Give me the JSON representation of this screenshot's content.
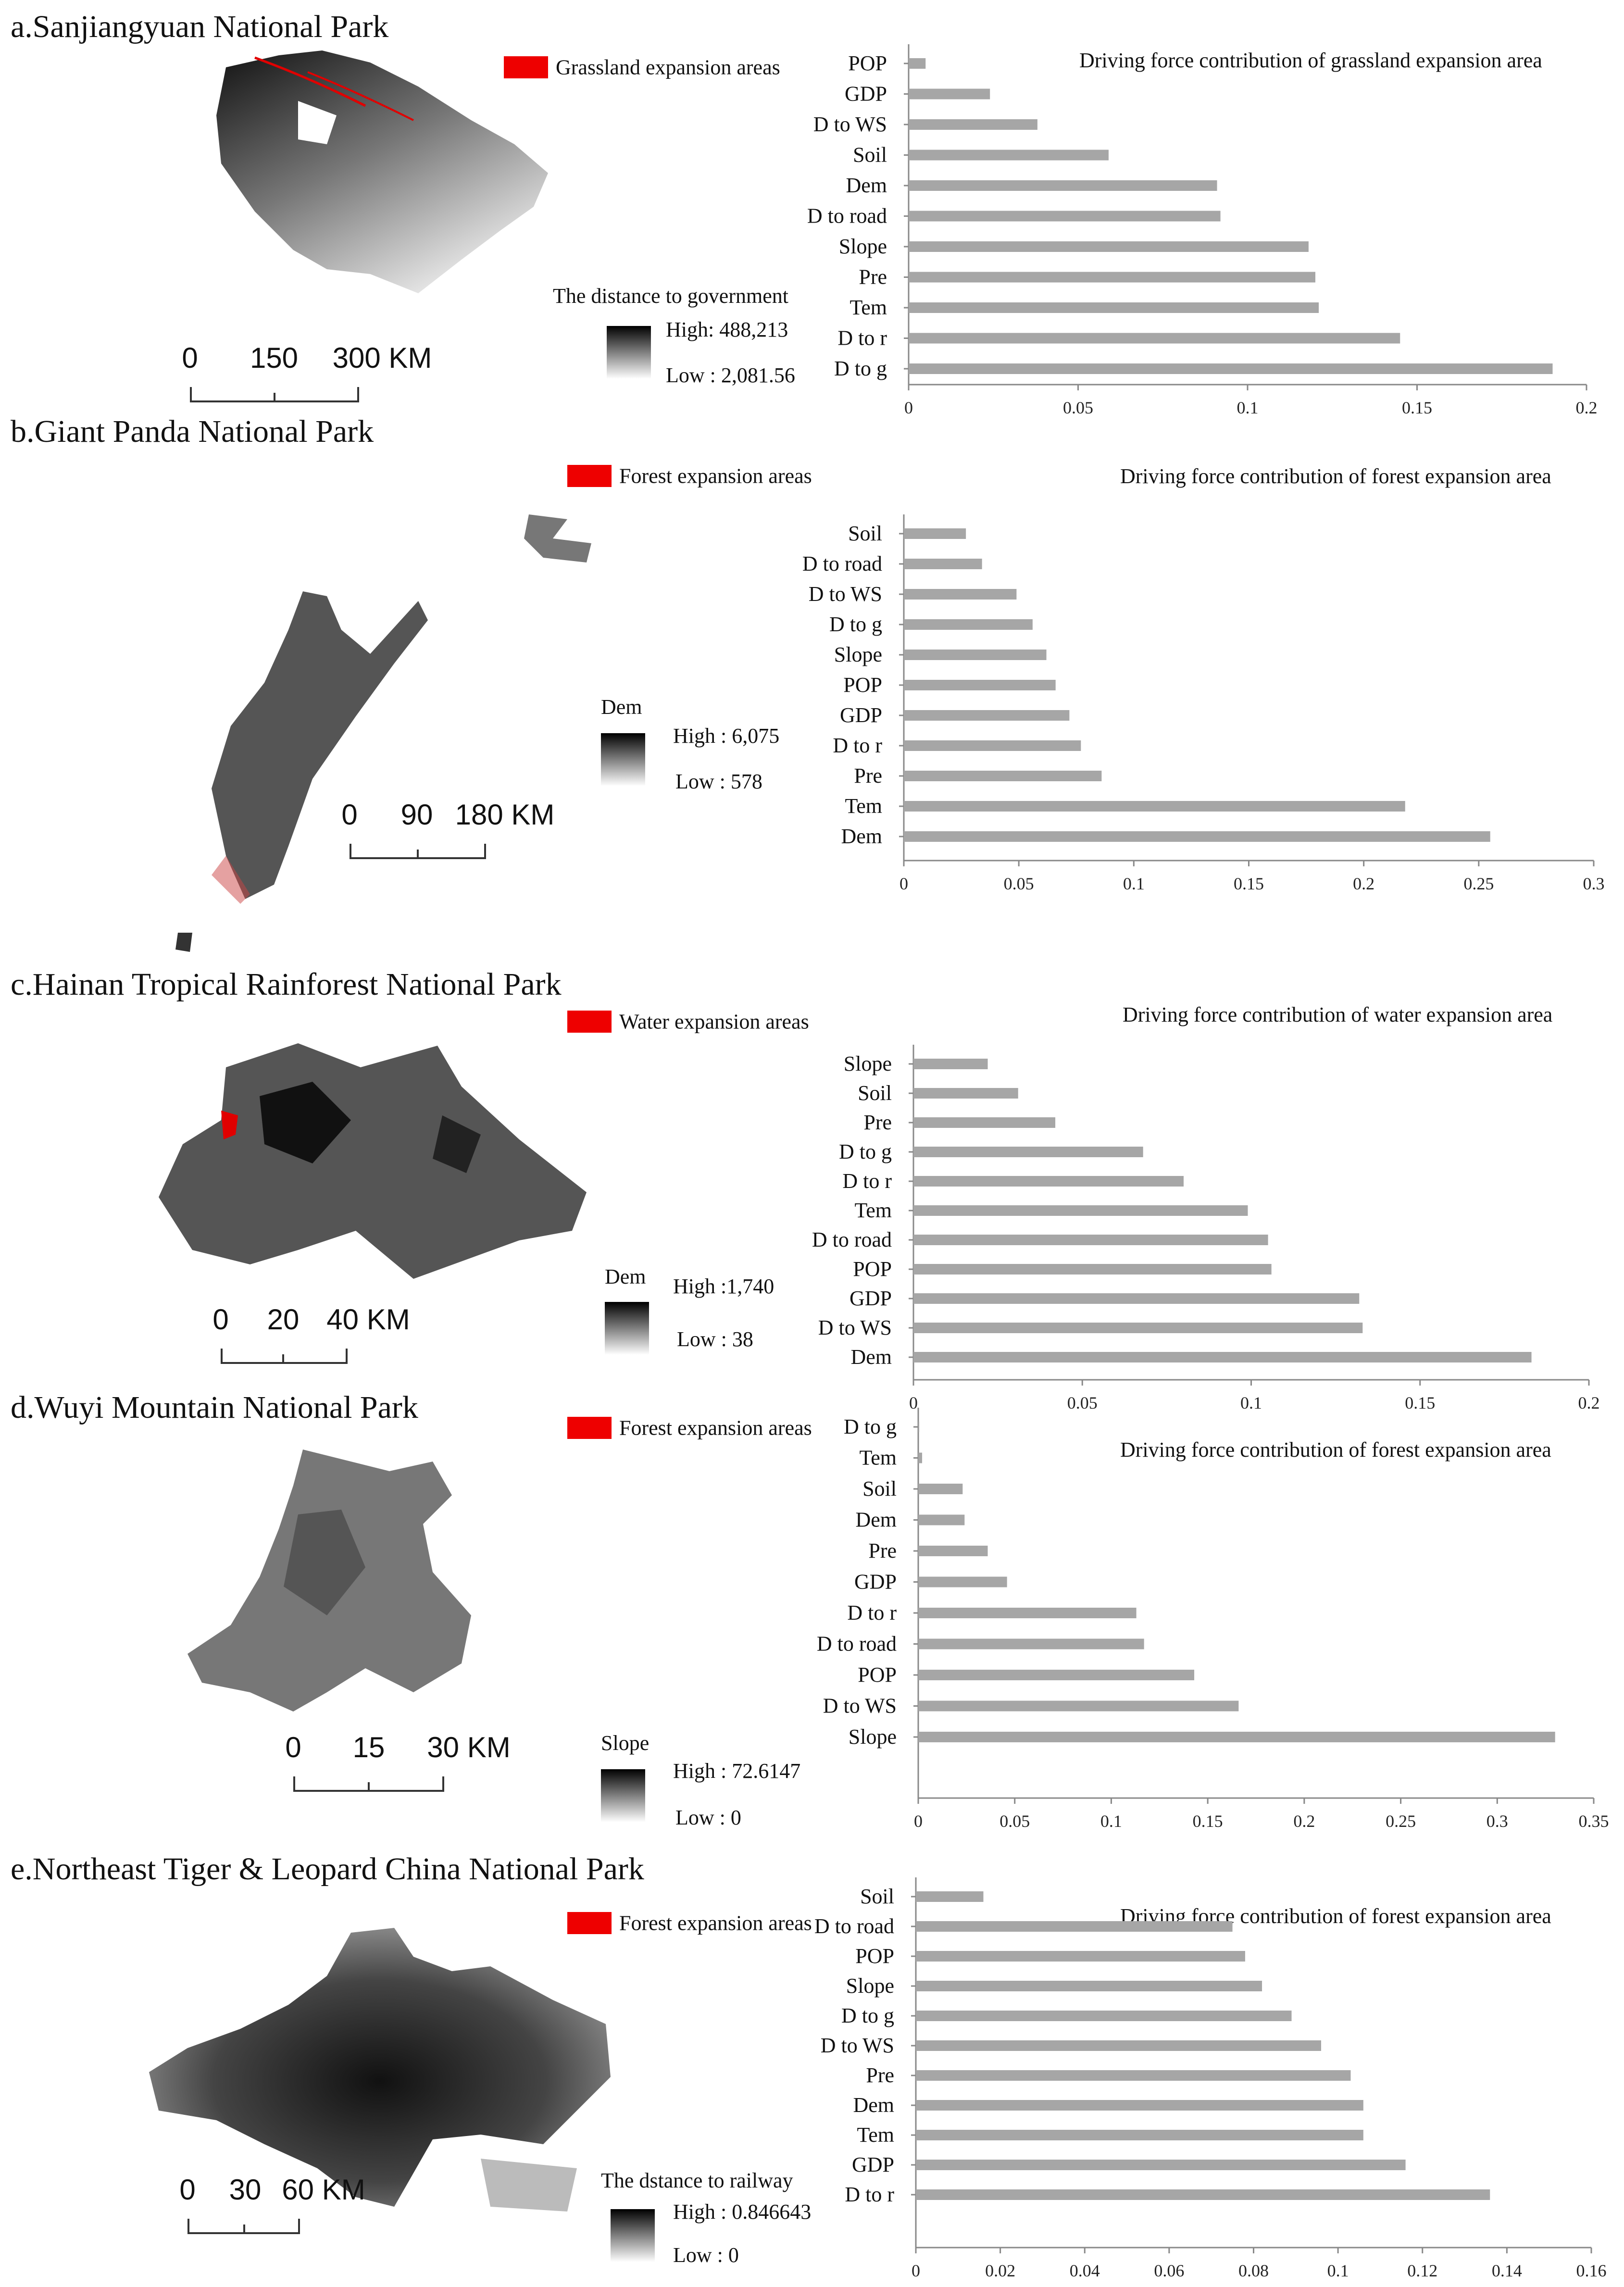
{
  "panels": [
    {
      "title": "a.Sanjiangyuan National Park",
      "expansion_legend": "Grassland expansion areas",
      "gradient": {
        "title": "The distance to government",
        "high": "High:  488,213",
        "low": "Low :  2,081.56"
      },
      "scale_labels": [
        "0",
        "150",
        "300 KM"
      ],
      "chart_data": {
        "type": "bar",
        "orientation": "horizontal",
        "title": "Driving force contribution of grassland expansion area",
        "categories": [
          "POP",
          "GDP",
          "D to WS",
          "Soil",
          "Dem",
          "D to road",
          "Slope",
          "Pre",
          "Tem",
          "D to r",
          "D to g"
        ],
        "values": [
          0.005,
          0.024,
          0.038,
          0.059,
          0.091,
          0.092,
          0.118,
          0.12,
          0.121,
          0.145,
          0.19
        ],
        "xlim": [
          0,
          0.2
        ],
        "xticks": [
          "0",
          "0.05",
          "0.1",
          "0.15",
          "0.2"
        ],
        "bar_color": "#a6a6a6"
      }
    },
    {
      "title": "b.Giant Panda National Park",
      "expansion_legend": "Forest expansion areas",
      "gradient": {
        "title": "Dem",
        "high": "High  : 6,075",
        "low": "Low   : 578"
      },
      "scale_labels": [
        "0",
        "90",
        "180 KM"
      ],
      "chart_data": {
        "type": "bar",
        "orientation": "horizontal",
        "title": "Driving force contribution of forest expansion area",
        "categories": [
          "Soil",
          "D to road",
          "D to WS",
          "D to g",
          "Slope",
          "POP",
          "GDP",
          "D to r",
          "Pre",
          "Tem",
          "Dem"
        ],
        "values": [
          0.027,
          0.034,
          0.049,
          0.056,
          0.062,
          0.066,
          0.072,
          0.077,
          0.086,
          0.218,
          0.255
        ],
        "xlim": [
          0,
          0.3
        ],
        "xticks": [
          "0",
          "0.05",
          "0.1",
          "0.15",
          "0.2",
          "0.25",
          "0.3"
        ],
        "bar_color": "#a6a6a6"
      }
    },
    {
      "title": "c.Hainan Tropical Rainforest National Park",
      "expansion_legend": "Water expansion areas",
      "gradient": {
        "title": "Dem",
        "high": "High :1,740",
        "low": "Low : 38"
      },
      "scale_labels": [
        "0",
        "20",
        "40 KM"
      ],
      "chart_data": {
        "type": "bar",
        "orientation": "horizontal",
        "title": "Driving force contribution of water expansion area",
        "categories": [
          "Slope",
          "Soil",
          "Pre",
          "D to g",
          "D to r",
          "Tem",
          "D to road",
          "POP",
          "GDP",
          "D to WS",
          "Dem"
        ],
        "values": [
          0.022,
          0.031,
          0.042,
          0.068,
          0.08,
          0.099,
          0.105,
          0.106,
          0.132,
          0.133,
          0.183
        ],
        "xlim": [
          0,
          0.2
        ],
        "xticks": [
          "0",
          "0.05",
          "0.1",
          "0.15",
          "0.2"
        ],
        "bar_color": "#a6a6a6"
      }
    },
    {
      "title": "d.Wuyi Mountain National Park",
      "expansion_legend": "Forest expansion areas",
      "gradient": {
        "title": "Slope",
        "high": "High : 72.6147",
        "low": "Low : 0"
      },
      "scale_labels": [
        "0",
        "15",
        "30 KM"
      ],
      "chart_data": {
        "type": "bar",
        "orientation": "horizontal",
        "title": "Driving force contribution of forest expansion area",
        "categories": [
          "D to g",
          "Tem",
          "Soil",
          "Dem",
          "Pre",
          "GDP",
          "D to r",
          "D to road",
          "POP",
          "D to WS",
          "Slope"
        ],
        "values": [
          0.0005,
          0.002,
          0.023,
          0.024,
          0.036,
          0.046,
          0.113,
          0.117,
          0.143,
          0.166,
          0.33
        ],
        "xlim": [
          0,
          0.35
        ],
        "xticks": [
          "0",
          "0.05",
          "0.1",
          "0.15",
          "0.2",
          "0.25",
          "0.3",
          "0.35"
        ],
        "bar_color": "#a6a6a6"
      }
    },
    {
      "title": "e.Northeast Tiger & Leopard China National Park",
      "expansion_legend": "Forest expansion areas",
      "gradient": {
        "title": "The dstance to railway",
        "high": "High : 0.846643",
        "low": "Low : 0"
      },
      "scale_labels": [
        "0",
        "30",
        "60 KM"
      ],
      "chart_data": {
        "type": "bar",
        "orientation": "horizontal",
        "title": "Driving force contribution of forest expansion area",
        "categories": [
          "Soil",
          "D to road",
          "POP",
          "Slope",
          "D to g",
          "D to WS",
          "Pre",
          "Dem",
          "Tem",
          "GDP",
          "D to r"
        ],
        "values": [
          0.016,
          0.075,
          0.078,
          0.082,
          0.089,
          0.096,
          0.103,
          0.106,
          0.106,
          0.116,
          0.136
        ],
        "xlim": [
          0,
          0.16
        ],
        "xticks": [
          "0",
          "0.02",
          "0.04",
          "0.06",
          "0.08",
          "0.1",
          "0.12",
          "0.14",
          "0.16"
        ],
        "bar_color": "#a6a6a6"
      }
    }
  ]
}
